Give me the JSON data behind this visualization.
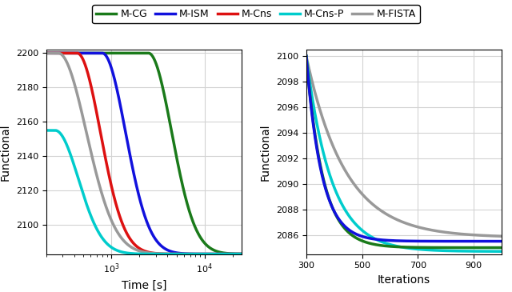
{
  "legend_labels": [
    "M-CG",
    "M-ISM",
    "M-Cns",
    "M-Cns-P",
    "M-FISTA"
  ],
  "colors": {
    "M-CG": "#1a7a1a",
    "M-ISM": "#1111dd",
    "M-Cns": "#dd1111",
    "M-Cns-P": "#00cccc",
    "M-FISTA": "#999999"
  },
  "linewidth": 2.5,
  "left_plot": {
    "xlabel": "Time [s]",
    "ylabel": "Functional",
    "ylim_lo": 2083,
    "ylim_hi": 2202,
    "yticks": [
      2100,
      2120,
      2140,
      2160,
      2180,
      2200
    ],
    "xlim_lo": 200,
    "xlim_hi": 25000
  },
  "right_plot": {
    "xlabel": "Iterations",
    "ylabel": "Functional",
    "ylim_lo": 2084.5,
    "ylim_hi": 2100.5,
    "xlim_lo": 300,
    "xlim_hi": 1000,
    "yticks": [
      2086,
      2088,
      2090,
      2092,
      2094,
      2096,
      2098,
      2100
    ],
    "xticks": [
      300,
      500,
      700,
      900
    ]
  }
}
